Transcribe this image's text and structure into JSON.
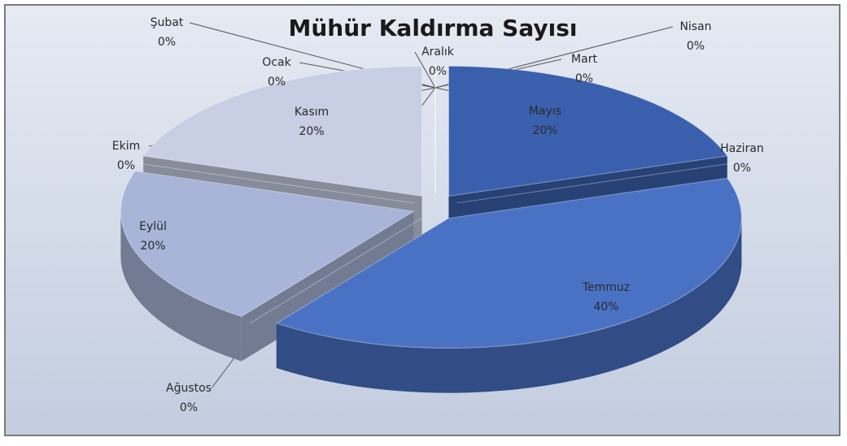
{
  "chart_data": {
    "type": "pie",
    "title": "Mühür Kaldırma Sayısı",
    "categories": [
      "Ocak",
      "Şubat",
      "Mart",
      "Nisan",
      "Mayıs",
      "Haziran",
      "Temmuz",
      "Ağustos",
      "Eylül",
      "Ekim",
      "Kasım",
      "Aralık"
    ],
    "values": [
      0,
      0,
      0,
      0,
      20,
      0,
      40,
      0,
      20,
      0,
      20,
      0
    ],
    "value_labels": [
      "0%",
      "0%",
      "0%",
      "0%",
      "20%",
      "0%",
      "40%",
      "0%",
      "20%",
      "0%",
      "20%",
      "0%"
    ],
    "colors": [
      "#5b7fc7",
      "#8fa3d3",
      "#2e4f8f",
      "#6d8ccc",
      "#3a60ad",
      "#1f3a6e",
      "#4a72c4",
      "#5f77aa",
      "#a8b5d8",
      "#4a4f5c",
      "#c8cfe4",
      "#e3e8f3"
    ]
  }
}
